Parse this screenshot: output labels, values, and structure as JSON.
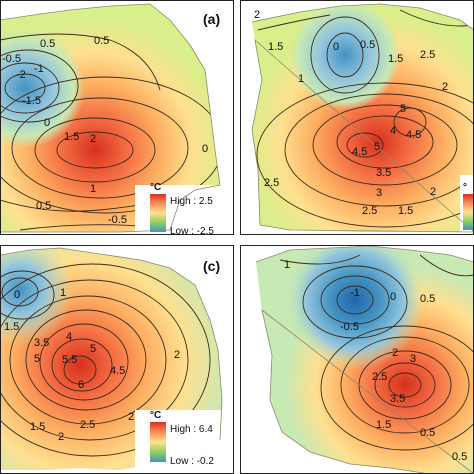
{
  "panels": [
    {
      "letter": "(a)",
      "unit": "°C",
      "legend_high": "High : 2.5",
      "legend_low": "Low : -2.5",
      "contour_labels": [
        "0.5",
        "-0.5",
        "-1",
        "-2",
        "-1.5",
        "0",
        "1.5",
        "2",
        "0.5",
        "1",
        "0.5",
        "-0.5",
        "0"
      ]
    },
    {
      "letter": "",
      "unit": "°",
      "legend_high": "",
      "legend_low": "",
      "contour_labels": [
        "2",
        "1.5",
        "0",
        "0.5",
        "1.5",
        "2.5",
        "1",
        "2",
        "5",
        "4.5",
        "5",
        "4",
        "4.5",
        "3.5",
        "2.5",
        "3",
        "2.5",
        "2",
        "1.5"
      ]
    },
    {
      "letter": "(c)",
      "unit": "°C",
      "legend_high": "High : 6.4",
      "legend_low": "Low : -0.2",
      "contour_labels": [
        "0",
        "1",
        "1.5",
        "3.5",
        "4",
        "5",
        "5.5",
        "5",
        "6",
        "4.5",
        "2",
        "2",
        "2.5",
        "2",
        "1.5"
      ]
    },
    {
      "letter": "",
      "unit": "",
      "legend_high": "",
      "legend_low": "",
      "contour_labels": [
        "1",
        "-1",
        "0.5",
        "0",
        "-0.5",
        "2",
        "3",
        "2.5",
        "3.5",
        "1.5",
        "0.5",
        "0.5"
      ]
    }
  ]
}
